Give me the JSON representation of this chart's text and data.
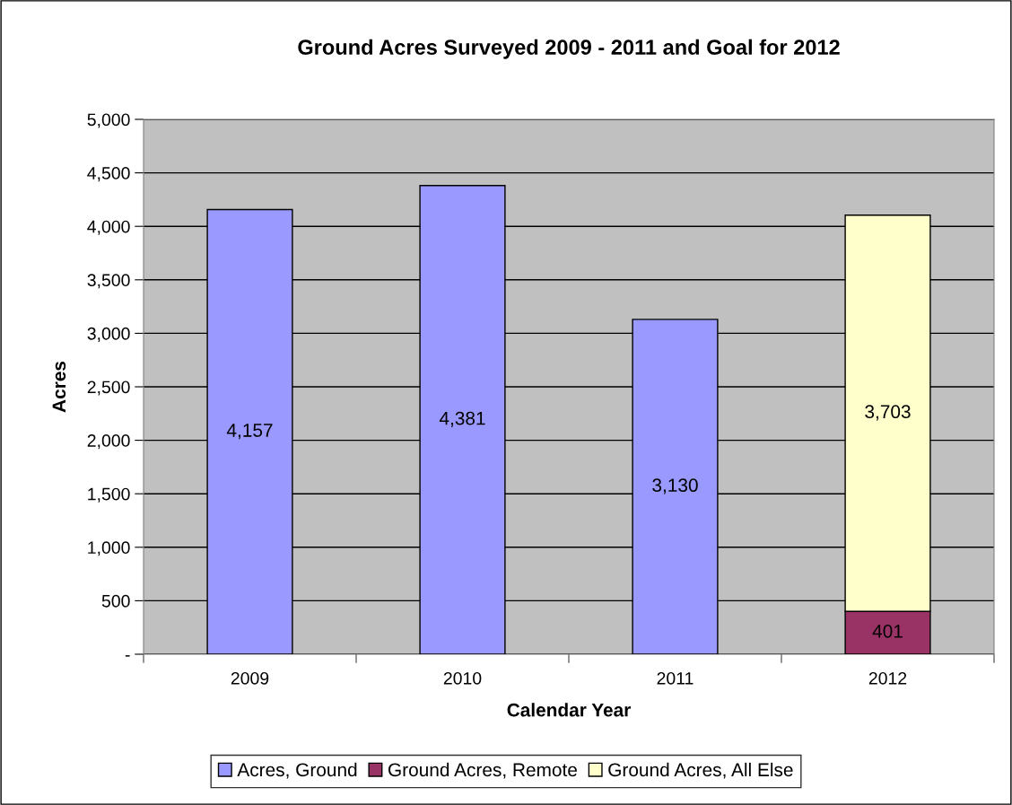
{
  "chart_data": {
    "type": "bar",
    "title": "Ground Acres Surveyed 2009 - 2011 and Goal for 2012",
    "xlabel": "Calendar Year",
    "ylabel": "Acres",
    "categories": [
      "2009",
      "2010",
      "2011",
      "2012"
    ],
    "stacked": true,
    "series": [
      {
        "name": "Acres, Ground",
        "color": "#9999ff",
        "values": [
          4157,
          4381,
          3130,
          null
        ],
        "value_labels": [
          "4,157",
          "4,381",
          "3,130",
          null
        ]
      },
      {
        "name": "Ground Acres, Remote",
        "color": "#993366",
        "values": [
          null,
          null,
          null,
          401
        ],
        "value_labels": [
          null,
          null,
          null,
          "401"
        ]
      },
      {
        "name": "Ground Acres, All Else",
        "color": "#ffffcc",
        "values": [
          null,
          null,
          null,
          3703
        ],
        "value_labels": [
          null,
          null,
          null,
          "3,703"
        ]
      }
    ],
    "ylim": [
      0,
      5000
    ],
    "yticks": [
      {
        "value": 0,
        "label": "-"
      },
      {
        "value": 500,
        "label": "500"
      },
      {
        "value": 1000,
        "label": "1,000"
      },
      {
        "value": 1500,
        "label": "1,500"
      },
      {
        "value": 2000,
        "label": "2,000"
      },
      {
        "value": 2500,
        "label": "2,500"
      },
      {
        "value": 3000,
        "label": "3,000"
      },
      {
        "value": 3500,
        "label": "3,500"
      },
      {
        "value": 4000,
        "label": "4,000"
      },
      {
        "value": 4500,
        "label": "4,500"
      },
      {
        "value": 5000,
        "label": "5,000"
      }
    ],
    "grid": "y",
    "legend": "bottom"
  }
}
